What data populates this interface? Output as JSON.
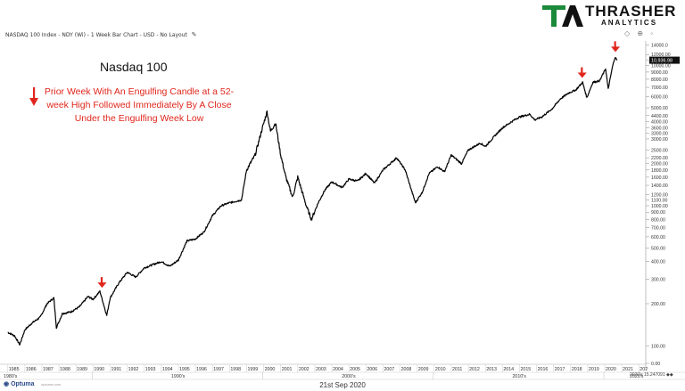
{
  "header": {
    "chart_source": "NASDAQ 100 Index - NDY (Wi) - 1 Week Bar Chart - USD - No Layout",
    "toolbar_icons": "◇ ⊕ ◦"
  },
  "logo": {
    "name": "THRASHER",
    "sub": "ANALYTICS",
    "colors": {
      "green": "#1a8a3a",
      "black": "#111111"
    }
  },
  "footer": {
    "date": "21st Sep 2020",
    "brand": "Optuma",
    "brand_sub": "optuma.com",
    "scale_readout": "2020's 15.247091 ◆◆"
  },
  "colors": {
    "price": "#000000",
    "signal": "#e0261c",
    "grid": "#e3e3e3"
  },
  "chart_data": {
    "type": "line",
    "title": "Nasdaq 100",
    "annotation": "Prior Week With An Engulfing Candle at a 52-week High Followed Immediately By A Close Under the Engulfing Week Low",
    "y_scale": "log",
    "ylim": [
      80,
      15000
    ],
    "y_ticks": [
      14000,
      12000,
      10000,
      9000,
      8000,
      7000,
      6000,
      5000,
      4400,
      4000,
      3600,
      3300,
      3000,
      2500,
      2200,
      2000,
      1800,
      1600,
      1400,
      1200,
      1100,
      1000,
      900,
      800,
      700,
      600,
      500,
      400,
      300,
      200,
      100
    ],
    "y_tick_labels": [
      "14000.0",
      "12000.00",
      "11000.00",
      "10000.00",
      "9000.00",
      "8000.00",
      "7000.00",
      "6000.00",
      "5000.00",
      "4400.00",
      "4000.00",
      "3600.00",
      "3300.00",
      "3000.00",
      "2500.00",
      "2200.00",
      "2000.00",
      "1800.00",
      "1600.00",
      "1400.00",
      "1200.00",
      "1100.00",
      "1000.00",
      "900.00",
      "800.00",
      "700.00",
      "600.00",
      "500.00",
      "400.00",
      "300.00",
      "200.00",
      "100.00",
      "0.00"
    ],
    "y_tick_values": [
      14000,
      12000,
      11000,
      10000,
      9000,
      8000,
      7000,
      6000,
      5000,
      4400,
      4000,
      3600,
      3300,
      3000,
      2500,
      2200,
      2000,
      1800,
      1600,
      1400,
      1200,
      1100,
      1000,
      900,
      800,
      700,
      600,
      500,
      400,
      300,
      200,
      100,
      75
    ],
    "last_value_label": "10,936.98",
    "last_value": 10936.98,
    "x_years": [
      "1985",
      "1986",
      "1987",
      "1988",
      "1989",
      "1990",
      "1991",
      "1992",
      "1993",
      "1994",
      "1995",
      "1996",
      "1997",
      "1998",
      "1999",
      "2000",
      "2001",
      "2002",
      "2003",
      "2004",
      "2005",
      "2006",
      "2007",
      "2008",
      "2009",
      "2010",
      "2011",
      "2012",
      "2013",
      "2014",
      "2015",
      "2016",
      "2017",
      "2018",
      "2019",
      "2020",
      "2021",
      "202"
    ],
    "decades": [
      {
        "label": "1980's",
        "year": 1985
      },
      {
        "label": "1990's",
        "year": 1995
      },
      {
        "label": "2000's",
        "year": 2005
      },
      {
        "label": "2010's",
        "year": 2015
      },
      {
        "label": "2020's",
        "year": 2021
      }
    ],
    "series": [
      {
        "points": [
          [
            1985.0,
            125
          ],
          [
            1985.4,
            118
          ],
          [
            1985.7,
            102
          ],
          [
            1986.0,
            130
          ],
          [
            1986.4,
            145
          ],
          [
            1986.9,
            160
          ],
          [
            1987.3,
            200
          ],
          [
            1987.7,
            220
          ],
          [
            1987.85,
            135
          ],
          [
            1988.2,
            170
          ],
          [
            1988.7,
            175
          ],
          [
            1989.2,
            190
          ],
          [
            1989.7,
            225
          ],
          [
            1990.0,
            215
          ],
          [
            1990.4,
            245
          ],
          [
            1990.8,
            165
          ],
          [
            1991.0,
            220
          ],
          [
            1991.5,
            280
          ],
          [
            1992.0,
            335
          ],
          [
            1992.5,
            310
          ],
          [
            1993.0,
            360
          ],
          [
            1993.5,
            380
          ],
          [
            1994.0,
            400
          ],
          [
            1994.5,
            370
          ],
          [
            1995.0,
            410
          ],
          [
            1995.5,
            560
          ],
          [
            1996.0,
            580
          ],
          [
            1996.5,
            650
          ],
          [
            1997.0,
            850
          ],
          [
            1997.5,
            1000
          ],
          [
            1998.0,
            1050
          ],
          [
            1998.7,
            1100
          ],
          [
            1999.0,
            1800
          ],
          [
            1999.5,
            2300
          ],
          [
            1999.9,
            3500
          ],
          [
            2000.2,
            4700
          ],
          [
            2000.4,
            3400
          ],
          [
            2000.7,
            3900
          ],
          [
            2001.0,
            2300
          ],
          [
            2001.3,
            1600
          ],
          [
            2001.7,
            1150
          ],
          [
            2002.0,
            1600
          ],
          [
            2002.5,
            1000
          ],
          [
            2002.8,
            800
          ],
          [
            2003.2,
            1050
          ],
          [
            2003.6,
            1300
          ],
          [
            2004.0,
            1480
          ],
          [
            2004.6,
            1350
          ],
          [
            2005.0,
            1550
          ],
          [
            2005.5,
            1500
          ],
          [
            2006.0,
            1700
          ],
          [
            2006.5,
            1450
          ],
          [
            2007.0,
            1800
          ],
          [
            2007.8,
            2200
          ],
          [
            2008.3,
            1800
          ],
          [
            2008.7,
            1250
          ],
          [
            2008.9,
            1050
          ],
          [
            2009.3,
            1250
          ],
          [
            2009.7,
            1700
          ],
          [
            2010.2,
            1900
          ],
          [
            2010.6,
            1750
          ],
          [
            2011.0,
            2300
          ],
          [
            2011.6,
            2000
          ],
          [
            2012.0,
            2500
          ],
          [
            2012.7,
            2800
          ],
          [
            2013.0,
            2650
          ],
          [
            2013.7,
            3300
          ],
          [
            2014.0,
            3600
          ],
          [
            2014.7,
            4100
          ],
          [
            2015.0,
            4300
          ],
          [
            2015.6,
            4500
          ],
          [
            2015.9,
            4100
          ],
          [
            2016.3,
            4300
          ],
          [
            2016.9,
            4900
          ],
          [
            2017.4,
            5800
          ],
          [
            2017.9,
            6400
          ],
          [
            2018.3,
            6700
          ],
          [
            2018.7,
            7600
          ],
          [
            2018.95,
            5900
          ],
          [
            2019.3,
            7600
          ],
          [
            2019.7,
            7800
          ],
          [
            2020.05,
            9500
          ],
          [
            2020.2,
            6800
          ],
          [
            2020.45,
            9800
          ],
          [
            2020.6,
            11500
          ],
          [
            2020.72,
            10936.98
          ]
        ]
      }
    ],
    "signal_markers": [
      {
        "x": 1990.5,
        "y": 245
      },
      {
        "x": 2018.65,
        "y": 7700
      },
      {
        "x": 2020.6,
        "y": 11800
      }
    ],
    "grid": true
  }
}
